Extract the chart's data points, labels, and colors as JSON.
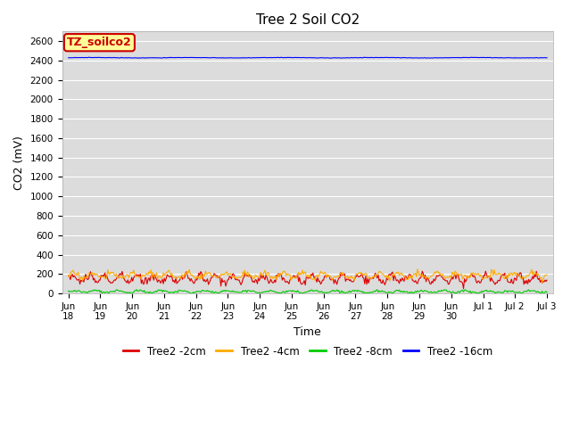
{
  "title": "Tree 2 Soil CO2",
  "xlabel": "Time",
  "ylabel": "CO2 (mV)",
  "ylim": [
    0,
    2700
  ],
  "yticks": [
    0,
    200,
    400,
    600,
    800,
    1000,
    1200,
    1400,
    1600,
    1800,
    2000,
    2200,
    2400,
    2600
  ],
  "fig_bg": "#ffffff",
  "plot_bg": "#dcdcdc",
  "series": [
    {
      "label": "Tree2 -2cm",
      "color": "#dd0000",
      "base": 150,
      "amp": 35,
      "n_cycles": 30
    },
    {
      "label": "Tree2 -4cm",
      "color": "#ffaa00",
      "base": 185,
      "amp": 25,
      "n_cycles": 25
    },
    {
      "label": "Tree2 -8cm",
      "color": "#00cc00",
      "base": 18,
      "amp": 10,
      "n_cycles": 22
    },
    {
      "label": "Tree2 -16cm",
      "color": "#0000ff",
      "base": 2430,
      "amp": 2,
      "n_cycles": 5
    }
  ],
  "annotation_text": "TZ_soilco2",
  "annotation_bg": "#ffff99",
  "annotation_border": "#cc0000",
  "n_points": 500,
  "x_start": 0,
  "x_end": 15,
  "xtick_positions": [
    0,
    1,
    2,
    3,
    4,
    5,
    6,
    7,
    8,
    9,
    10,
    11,
    12,
    13,
    14,
    15
  ],
  "xtick_labels": [
    "Jun\n18",
    "Jun\n19",
    "Jun\n20",
    "Jun\n21",
    "Jun\n22",
    "Jun\n23",
    "Jun\n24",
    "Jun\n25",
    "Jun\n26",
    "Jun\n27",
    "Jun\n28",
    "Jun\n29",
    "Jun\n30",
    "Jul 1",
    "Jul 2",
    "Jul 3"
  ],
  "font_family": "DejaVu Sans",
  "title_fontsize": 11,
  "axis_label_fontsize": 9,
  "tick_fontsize": 7.5,
  "legend_fontsize": 8.5
}
